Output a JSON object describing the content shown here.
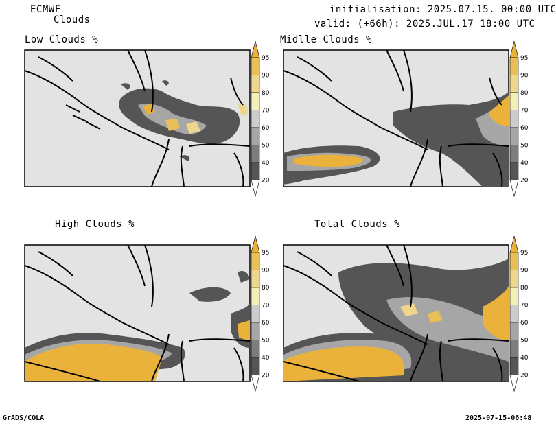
{
  "header": {
    "model": "ECMWF",
    "product": "Clouds",
    "init": "initialisation: 2025.07.15. 00:00 UTC",
    "valid": "valid: (+66h): 2025.JUL.17 18:00 UTC"
  },
  "panels": [
    {
      "id": "low",
      "title": "Low Clouds %"
    },
    {
      "id": "mid",
      "title": "Midlle Clouds %"
    },
    {
      "id": "high",
      "title": "High Clouds %"
    },
    {
      "id": "total",
      "title": "Total Clouds %"
    }
  ],
  "legend": {
    "levels": [
      "20",
      "40",
      "50",
      "60",
      "70",
      "80",
      "90",
      "95"
    ],
    "colors": {
      "below20": "#ffffff",
      "20-40": "#555555",
      "40-50": "#7d7d7d",
      "50-60": "#a6a6a6",
      "60-70": "#cccccc",
      "70-80": "#f2f0b8",
      "80-90": "#eed68c",
      "90-95": "#e9bf57",
      "above95": "#eab23a"
    }
  },
  "footer": {
    "left": "GrADS/COLA",
    "right": "2025-07-15-06:48"
  }
}
